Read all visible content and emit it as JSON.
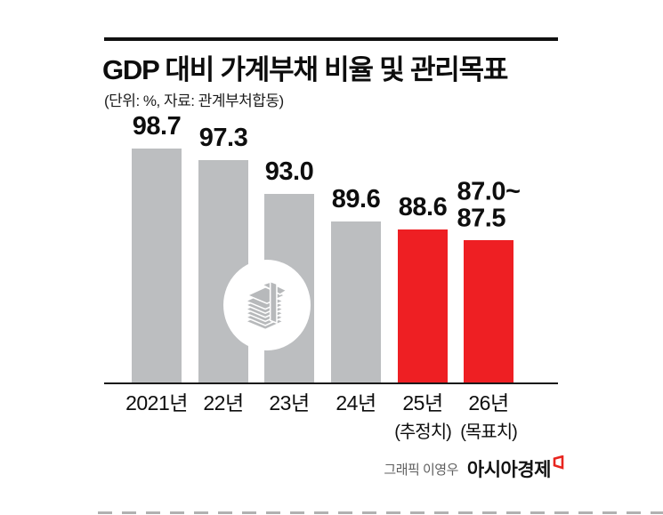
{
  "header": {
    "title": "GDP 대비 가계부채 비율 및 관리목표",
    "subtitle": "(단위: %, 자료: 관계부처합동)"
  },
  "chart_data": {
    "type": "bar",
    "title": "GDP 대비 가계부채 비율 및 관리목표",
    "unit_source_note": "(단위: %, 자료: 관계부처합동)",
    "categories": [
      "2021년",
      "22년",
      "23년",
      "24년",
      "25년",
      "26년"
    ],
    "category_sublabels": [
      "",
      "",
      "",
      "",
      "(추정치)",
      "(목표치)"
    ],
    "bars": [
      {
        "category": "2021년",
        "sublabel": "",
        "value": 98.7,
        "label": "98.7",
        "color": "#bcbec0"
      },
      {
        "category": "22년",
        "sublabel": "",
        "value": 97.3,
        "label": "97.3",
        "color": "#bcbec0"
      },
      {
        "category": "23년",
        "sublabel": "",
        "value": 93.0,
        "label": "93.0",
        "color": "#bcbec0"
      },
      {
        "category": "24년",
        "sublabel": "",
        "value": 89.6,
        "label": "89.6",
        "color": "#bcbec0"
      },
      {
        "category": "25년",
        "sublabel": "(추정치)",
        "value": 88.6,
        "label": "88.6",
        "color": "#ee1f23"
      },
      {
        "category": "26년",
        "sublabel": "(목표치)",
        "value_range": [
          87.0,
          87.5
        ],
        "draw_value": 87.25,
        "label": "87.0~\n87.5",
        "color": "#ee1f23"
      }
    ],
    "ylim": [
      69.5,
      100
    ],
    "grid": false,
    "legend": false
  },
  "footer": {
    "credit": "그래픽 이영우",
    "brand": "아시아경제"
  },
  "icons": {
    "center_icon": "money-stack-icon",
    "brand_mark": "asiae-red-mark-icon"
  },
  "colors": {
    "bar_past": "#bcbec0",
    "bar_target": "#ee1f23",
    "axis": "#1a1a1a",
    "icon_gray": "#b7b9bb",
    "credit_text": "#5f5f5f",
    "brand_red": "#e8251f"
  }
}
